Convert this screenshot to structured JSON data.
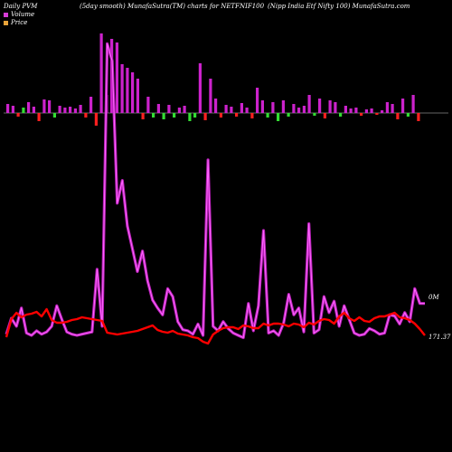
{
  "header": {
    "left": "Daily PVM",
    "mid1": "(5day smooth) MunafaSutra(TM) charts for NETFNIF100",
    "mid2": "(Nipp India  Etf  Nifty 100) MunafaSutra.com"
  },
  "chart_data": {
    "type": "line",
    "legend": [
      {
        "name": "Volume",
        "color": "#d63cd6"
      },
      {
        "name": "Price",
        "color": "#e8a33a"
      }
    ],
    "colors": {
      "volume_line": "#b81fb8",
      "volume_line_glow": "#ff66ff",
      "price_line": "#ff0000",
      "up_bar": "#cc22cc",
      "down_bar": "#ff2020",
      "neutral_bar": "#33dd33",
      "baseline": "#888888"
    },
    "volume_label": "0M",
    "price_label": "171.37",
    "pvm_bars": [
      {
        "v": 10,
        "c": "up"
      },
      {
        "v": 8,
        "c": "up"
      },
      {
        "v": -4,
        "c": "down"
      },
      {
        "v": 6,
        "c": "neutral"
      },
      {
        "v": 12,
        "c": "up"
      },
      {
        "v": 7,
        "c": "up"
      },
      {
        "v": -9,
        "c": "down"
      },
      {
        "v": 15,
        "c": "up"
      },
      {
        "v": 14,
        "c": "up"
      },
      {
        "v": -5,
        "c": "neutral"
      },
      {
        "v": 8,
        "c": "up"
      },
      {
        "v": 6,
        "c": "up"
      },
      {
        "v": 7,
        "c": "up"
      },
      {
        "v": 5,
        "c": "up"
      },
      {
        "v": 9,
        "c": "up"
      },
      {
        "v": -5,
        "c": "down"
      },
      {
        "v": 18,
        "c": "up"
      },
      {
        "v": -14,
        "c": "down"
      },
      {
        "v": 88,
        "c": "up"
      },
      {
        "v": 20,
        "c": "up"
      },
      {
        "v": 82,
        "c": "up"
      },
      {
        "v": 78,
        "c": "up"
      },
      {
        "v": 54,
        "c": "up"
      },
      {
        "v": 50,
        "c": "up"
      },
      {
        "v": 45,
        "c": "up"
      },
      {
        "v": 38,
        "c": "up"
      },
      {
        "v": -7,
        "c": "down"
      },
      {
        "v": 18,
        "c": "up"
      },
      {
        "v": -5,
        "c": "neutral"
      },
      {
        "v": 10,
        "c": "up"
      },
      {
        "v": -7,
        "c": "neutral"
      },
      {
        "v": 9,
        "c": "up"
      },
      {
        "v": -5,
        "c": "neutral"
      },
      {
        "v": 6,
        "c": "up"
      },
      {
        "v": 8,
        "c": "up"
      },
      {
        "v": -9,
        "c": "neutral"
      },
      {
        "v": -5,
        "c": "neutral"
      },
      {
        "v": 55,
        "c": "up"
      },
      {
        "v": -8,
        "c": "down"
      },
      {
        "v": 38,
        "c": "up"
      },
      {
        "v": 16,
        "c": "up"
      },
      {
        "v": -5,
        "c": "down"
      },
      {
        "v": 9,
        "c": "up"
      },
      {
        "v": 7,
        "c": "up"
      },
      {
        "v": -4,
        "c": "down"
      },
      {
        "v": 11,
        "c": "up"
      },
      {
        "v": 6,
        "c": "up"
      },
      {
        "v": -6,
        "c": "down"
      },
      {
        "v": 28,
        "c": "up"
      },
      {
        "v": 14,
        "c": "up"
      },
      {
        "v": -5,
        "c": "neutral"
      },
      {
        "v": 12,
        "c": "up"
      },
      {
        "v": -9,
        "c": "neutral"
      },
      {
        "v": 14,
        "c": "up"
      },
      {
        "v": -4,
        "c": "neutral"
      },
      {
        "v": 10,
        "c": "up"
      },
      {
        "v": 6,
        "c": "up"
      },
      {
        "v": 8,
        "c": "up"
      },
      {
        "v": 20,
        "c": "up"
      },
      {
        "v": -3,
        "c": "neutral"
      },
      {
        "v": 16,
        "c": "up"
      },
      {
        "v": -6,
        "c": "down"
      },
      {
        "v": 14,
        "c": "up"
      },
      {
        "v": 12,
        "c": "up"
      },
      {
        "v": -4,
        "c": "neutral"
      },
      {
        "v": 8,
        "c": "up"
      },
      {
        "v": 5,
        "c": "up"
      },
      {
        "v": 6,
        "c": "up"
      },
      {
        "v": -3,
        "c": "down"
      },
      {
        "v": 4,
        "c": "up"
      },
      {
        "v": 5,
        "c": "up"
      },
      {
        "v": -2,
        "c": "down"
      },
      {
        "v": 3,
        "c": "up"
      },
      {
        "v": 12,
        "c": "up"
      },
      {
        "v": 10,
        "c": "up"
      },
      {
        "v": -7,
        "c": "down"
      },
      {
        "v": 16,
        "c": "up"
      },
      {
        "v": -4,
        "c": "neutral"
      },
      {
        "v": 20,
        "c": "up"
      },
      {
        "v": -9,
        "c": "down"
      }
    ],
    "volume": [
      5,
      19,
      12,
      28,
      6,
      4,
      8,
      5,
      7,
      12,
      30,
      18,
      7,
      5,
      4,
      5,
      6,
      7,
      62,
      12,
      260,
      245,
      120,
      140,
      100,
      80,
      60,
      78,
      52,
      35,
      28,
      22,
      45,
      38,
      16,
      9,
      8,
      5,
      14,
      4,
      158,
      12,
      8,
      16,
      10,
      6,
      4,
      2,
      32,
      8,
      30,
      96,
      6,
      8,
      4,
      15,
      40,
      22,
      28,
      7,
      102,
      6,
      9,
      38,
      24,
      34,
      12,
      30,
      18,
      6,
      4,
      5,
      10,
      8,
      5,
      6,
      22,
      21,
      14,
      24,
      16,
      45,
      32,
      32
    ],
    "price": [
      3,
      23,
      30,
      25,
      28,
      29,
      31,
      26,
      34,
      22,
      19,
      19,
      20,
      22,
      23,
      25,
      24,
      23,
      22,
      21,
      8,
      7,
      6,
      7,
      8,
      9,
      10,
      12,
      14,
      16,
      11,
      9,
      8,
      10,
      7,
      6,
      5,
      3,
      2,
      -2,
      -4,
      6,
      10,
      13,
      14,
      14,
      12,
      16,
      15,
      13,
      13,
      18,
      16,
      18,
      18,
      17,
      15,
      18,
      17,
      14,
      19,
      17,
      21,
      23,
      22,
      18,
      26,
      30,
      24,
      21,
      25,
      21,
      20,
      24,
      26,
      26,
      28,
      30,
      25,
      24,
      22,
      18,
      12,
      5
    ]
  }
}
